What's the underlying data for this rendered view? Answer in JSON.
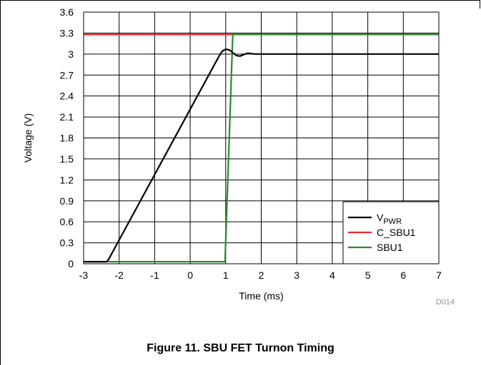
{
  "chart_data": {
    "type": "line",
    "xlabel": "Time (ms)",
    "ylabel": "Voltage (V)",
    "xlim": [
      -3,
      7
    ],
    "ylim": [
      0,
      3.6
    ],
    "x_ticks": [
      "-3",
      "-2",
      "-1",
      "0",
      "1",
      "2",
      "3",
      "4",
      "5",
      "6",
      "7"
    ],
    "y_ticks": [
      "0",
      "0.3",
      "0.6",
      "0.9",
      "1.2",
      "1.5",
      "1.8",
      "2.1",
      "2.4",
      "2.7",
      "3",
      "3.3",
      "3.6"
    ],
    "grid": true,
    "legend_position": "bottom-right",
    "series": [
      {
        "name": "V",
        "name_sub": "PWR",
        "color": "#000000",
        "x": [
          -3,
          -2.35,
          -2.3,
          0.8,
          0.9,
          1.0,
          1.1,
          1.2,
          1.3,
          1.4,
          1.5,
          1.6,
          1.7,
          1.8,
          2.0,
          7.0
        ],
        "y": [
          0.03,
          0.03,
          0.06,
          2.96,
          3.04,
          3.07,
          3.06,
          3.02,
          2.98,
          2.97,
          2.99,
          3.01,
          3.01,
          3.0,
          3.0,
          3.0
        ]
      },
      {
        "name": "C_SBU1",
        "color": "#e8262b",
        "x": [
          -3,
          7
        ],
        "y": [
          3.28,
          3.28
        ]
      },
      {
        "name": "SBU1",
        "color": "#2a8a2a",
        "x": [
          -3,
          0.98,
          1.2,
          7
        ],
        "y": [
          0.03,
          0.03,
          3.28,
          3.28
        ]
      }
    ],
    "figure_code": "D014",
    "caption": "Figure 11. SBU FET Turnon Timing"
  }
}
